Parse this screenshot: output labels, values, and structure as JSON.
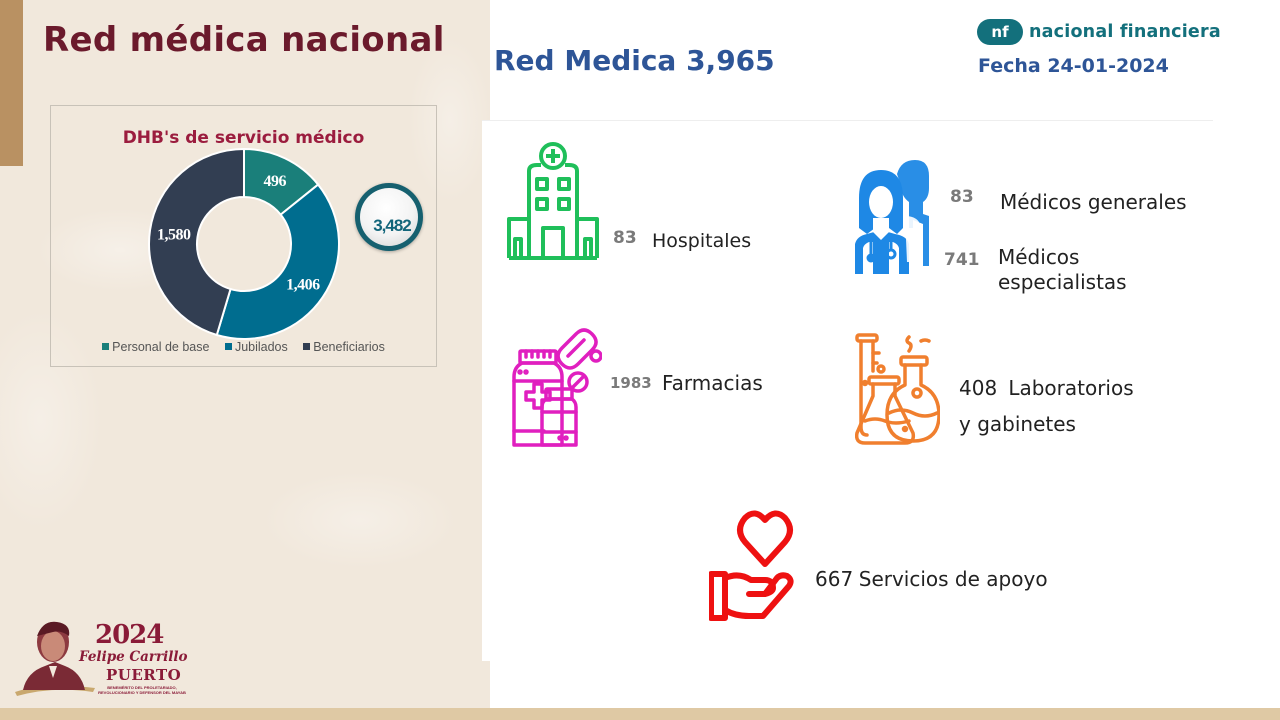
{
  "page": {
    "title": "Red médica nacional"
  },
  "header": {
    "red_medica_total": "Red Medica 3,965",
    "logo_mark": "nf",
    "logo_text": "nacional financiera",
    "fecha": "Fecha 24-01-2024"
  },
  "chart_data": {
    "type": "pie",
    "variant": "donut",
    "title": "DHB's de servicio médico",
    "categories": [
      "Personal de base",
      "Jubilados",
      "Beneficiarios"
    ],
    "values": [
      496,
      1406,
      1580
    ],
    "value_labels": [
      "496",
      "1,406",
      "1,580"
    ],
    "colors": [
      "#1a7f7a",
      "#006d8f",
      "#323e52"
    ],
    "total": 3482,
    "total_label": "3,482",
    "legend_position": "bottom"
  },
  "stats": {
    "hospitales": {
      "count": "83",
      "label": "Hospitales",
      "icon": "hospital-icon",
      "color": "#1fbf5a"
    },
    "medicos": {
      "icon": "doctors-icon",
      "color": "#1e88e5",
      "generales": {
        "count": "83",
        "label": "Médicos generales"
      },
      "especialistas": {
        "count": "741",
        "label": "Médicos especialistas"
      }
    },
    "farmacias": {
      "count": "1983",
      "label": "Farmacias",
      "icon": "pharmacy-icon",
      "color": "#e01fbf"
    },
    "laboratorios": {
      "count": "408",
      "label_line1": "Laboratorios",
      "label_line2": "y gabinetes",
      "icon": "lab-flasks-icon",
      "color": "#f07f2e"
    },
    "servicios": {
      "count": "667",
      "label": "Servicios de apoyo",
      "icon": "heart-hand-icon",
      "color": "#ee1111"
    }
  },
  "footer_seal": {
    "year": "2024",
    "name_line1": "Felipe Carrillo",
    "name_line2": "PUERTO",
    "tagline": "BENEMÉRITO DEL PROLETARIADO, REVOLUCIONARIO Y DEFENSOR DEL MAYAB"
  }
}
